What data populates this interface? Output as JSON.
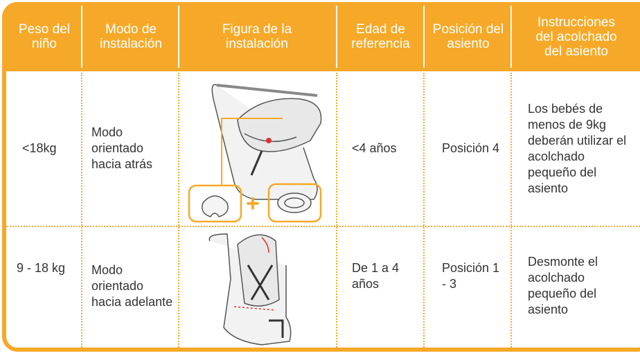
{
  "table": {
    "headers": [
      "Peso del niño",
      "Modo de instalación",
      "Figura de la instalación",
      "Edad de referencia",
      "Posición del asiento",
      "Instrucciones del acolchado del asiento"
    ],
    "figure_plus": "+",
    "rows": [
      [
        "<18kg",
        "Modo orientado hacia atrás",
        "<4 años",
        "Posición 4",
        "Los bebés de menos de 9kg deberán utilizar el acolchado pequeño del asiento"
      ],
      [
        "9 - 18 kg",
        "Modo orientado hacia adelante",
        "De 1 a 4 años",
        "Posición 1 - 3",
        "Desmonte el acolchado pequeño del asiento"
      ]
    ]
  }
}
